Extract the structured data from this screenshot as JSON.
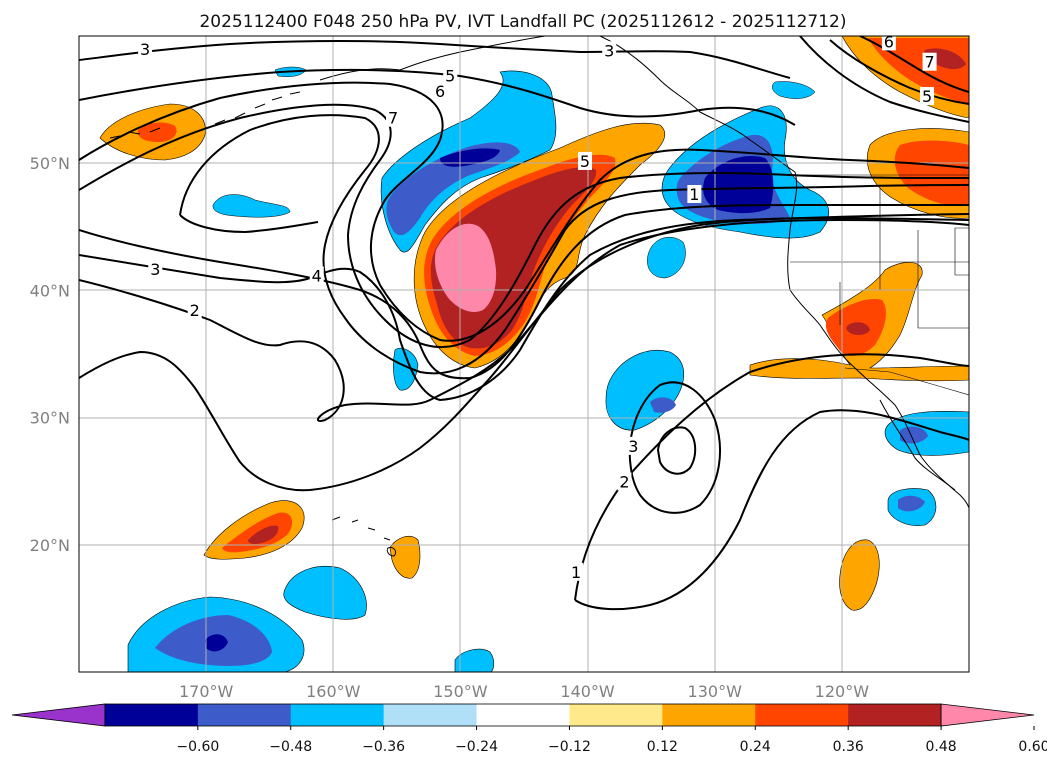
{
  "chart_data": {
    "type": "heatmap",
    "title": "2025112400 F048 250 hPa PV, IVT Landfall PC (2025112612 - 2025112712)",
    "x_ticks": [
      "170°W",
      "160°W",
      "150°W",
      "140°W",
      "130°W",
      "120°W"
    ],
    "x_tick_values": [
      -170,
      -160,
      -150,
      -140,
      -130,
      -120
    ],
    "y_ticks": [
      "50°N",
      "40°N",
      "30°N",
      "20°N"
    ],
    "y_tick_values": [
      50,
      40,
      30,
      20
    ],
    "xlim": [
      -180,
      -110
    ],
    "ylim": [
      10,
      60
    ],
    "grid": true,
    "colorbar": {
      "ticks": [
        "−0.60",
        "−0.48",
        "−0.36",
        "−0.24",
        "−0.12",
        "0.12",
        "0.24",
        "0.36",
        "0.48",
        "0.60"
      ],
      "colors": [
        "#9933cc",
        "#000099",
        "#3d5cc9",
        "#00bfff",
        "#b0e0f8",
        "#ffffff",
        "#ffe98a",
        "#ffa500",
        "#ff4500",
        "#b22222",
        "#ff88aa"
      ],
      "extend": "both"
    },
    "contour_labels": [
      {
        "text": "3",
        "lon": -174.8,
        "lat": 58.9
      },
      {
        "text": "5",
        "lon": -150.8,
        "lat": 56.8
      },
      {
        "text": "6",
        "lon": -151.6,
        "lat": 55.6
      },
      {
        "text": "7",
        "lon": -155.3,
        "lat": 53.5
      },
      {
        "text": "3",
        "lon": -174.0,
        "lat": 41.6
      },
      {
        "text": "4",
        "lon": -161.3,
        "lat": 41.1
      },
      {
        "text": "2",
        "lon": -170.9,
        "lat": 38.4
      },
      {
        "text": "3",
        "lon": -138.3,
        "lat": 58.8
      },
      {
        "text": "5",
        "lon": -140.2,
        "lat": 50.1
      },
      {
        "text": "1",
        "lon": -131.6,
        "lat": 47.5
      },
      {
        "text": "6",
        "lon": -116.3,
        "lat": 59.5
      },
      {
        "text": "7",
        "lon": -113.1,
        "lat": 57.9
      },
      {
        "text": "5",
        "lon": -113.3,
        "lat": 55.2
      },
      {
        "text": "3",
        "lon": -136.4,
        "lat": 27.7
      },
      {
        "text": "2",
        "lon": -137.1,
        "lat": 24.9
      },
      {
        "text": "1",
        "lon": -140.9,
        "lat": 17.8
      }
    ]
  }
}
